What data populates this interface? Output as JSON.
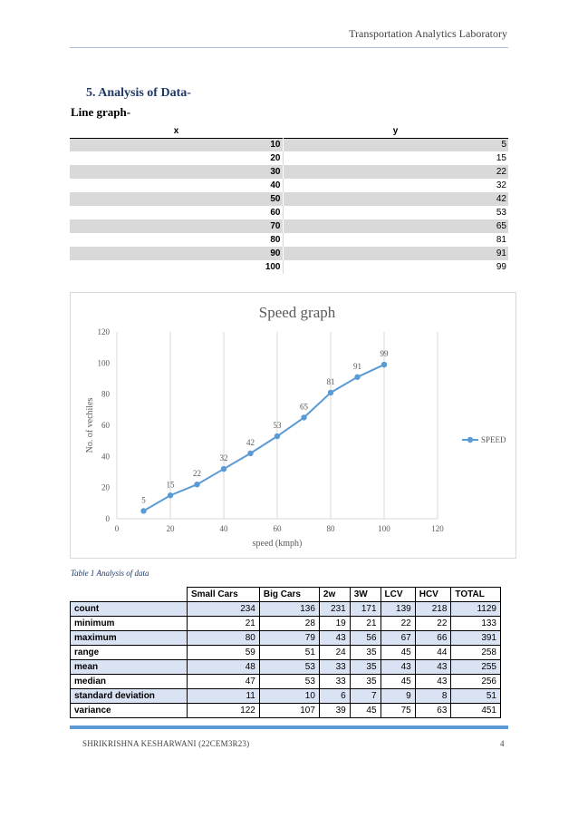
{
  "header": {
    "lab": "Transportation Analytics Laboratory"
  },
  "section": {
    "title": "5.  Analysis of Data-",
    "subtitle": "Line graph-"
  },
  "xy_table": {
    "headers": [
      "x",
      "y"
    ],
    "rows": [
      [
        "10",
        "5"
      ],
      [
        "20",
        "15"
      ],
      [
        "30",
        "22"
      ],
      [
        "40",
        "32"
      ],
      [
        "50",
        "42"
      ],
      [
        "60",
        "53"
      ],
      [
        "70",
        "65"
      ],
      [
        "80",
        "81"
      ],
      [
        "90",
        "91"
      ],
      [
        "100",
        "99"
      ]
    ]
  },
  "chart_data": {
    "type": "line",
    "title": "Speed graph",
    "xlabel": "speed (kmph)",
    "ylabel": "No. of vechiles",
    "xlim": [
      0,
      120
    ],
    "ylim": [
      0,
      120
    ],
    "xticks": [
      0,
      20,
      40,
      60,
      80,
      100,
      120
    ],
    "yticks": [
      0,
      20,
      40,
      60,
      80,
      100,
      120
    ],
    "grid": "vertical",
    "legend": "right",
    "color": "#5b9bd5",
    "series": [
      {
        "name": "SPEED",
        "x": [
          10,
          20,
          30,
          40,
          50,
          60,
          70,
          80,
          90,
          100
        ],
        "y": [
          5,
          15,
          22,
          32,
          42,
          53,
          65,
          81,
          91,
          99
        ]
      }
    ]
  },
  "caption": "Table 1 Analysis of data",
  "stats_table": {
    "headers": [
      "Small Cars",
      "Big Cars",
      "2w",
      "3W",
      "LCV",
      "HCV",
      "TOTAL"
    ],
    "rows": [
      {
        "label": "count",
        "values": [
          "234",
          "136",
          "231",
          "171",
          "139",
          "218",
          "1129"
        ]
      },
      {
        "label": "minimum",
        "values": [
          "21",
          "28",
          "19",
          "21",
          "22",
          "22",
          "133"
        ]
      },
      {
        "label": "maximum",
        "values": [
          "80",
          "79",
          "43",
          "56",
          "67",
          "66",
          "391"
        ]
      },
      {
        "label": "range",
        "values": [
          "59",
          "51",
          "24",
          "35",
          "45",
          "44",
          "258"
        ]
      },
      {
        "label": "mean",
        "values": [
          "48",
          "53",
          "33",
          "35",
          "43",
          "43",
          "255"
        ]
      },
      {
        "label": "median",
        "values": [
          "47",
          "53",
          "33",
          "35",
          "45",
          "43",
          "256"
        ]
      },
      {
        "label": "standard deviation",
        "values": [
          "11",
          "10",
          "6",
          "7",
          "9",
          "8",
          "51"
        ]
      },
      {
        "label": "variance",
        "values": [
          "122",
          "107",
          "39",
          "45",
          "75",
          "63",
          "451"
        ]
      }
    ]
  },
  "footer": {
    "author": "SHRIKRISHNA KESHARWANI (22CEM3R23)",
    "page": "4"
  }
}
